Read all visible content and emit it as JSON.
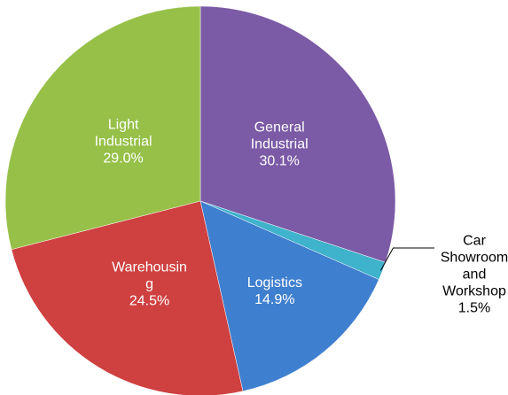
{
  "chart_data": {
    "type": "pie",
    "categories": [
      "General Industrial",
      "Car Showroom and Workshop",
      "Logistics",
      "Warehousing",
      "Light Industrial"
    ],
    "values": [
      30.1,
      1.5,
      14.9,
      24.5,
      29.0
    ],
    "value_labels": [
      "30.1%",
      "1.5%",
      "14.9%",
      "24.5%",
      "29.0%"
    ],
    "colors": [
      "#7b5aa6",
      "#3fb2cc",
      "#3f7fcf",
      "#cf4040",
      "#96c048"
    ]
  }
}
